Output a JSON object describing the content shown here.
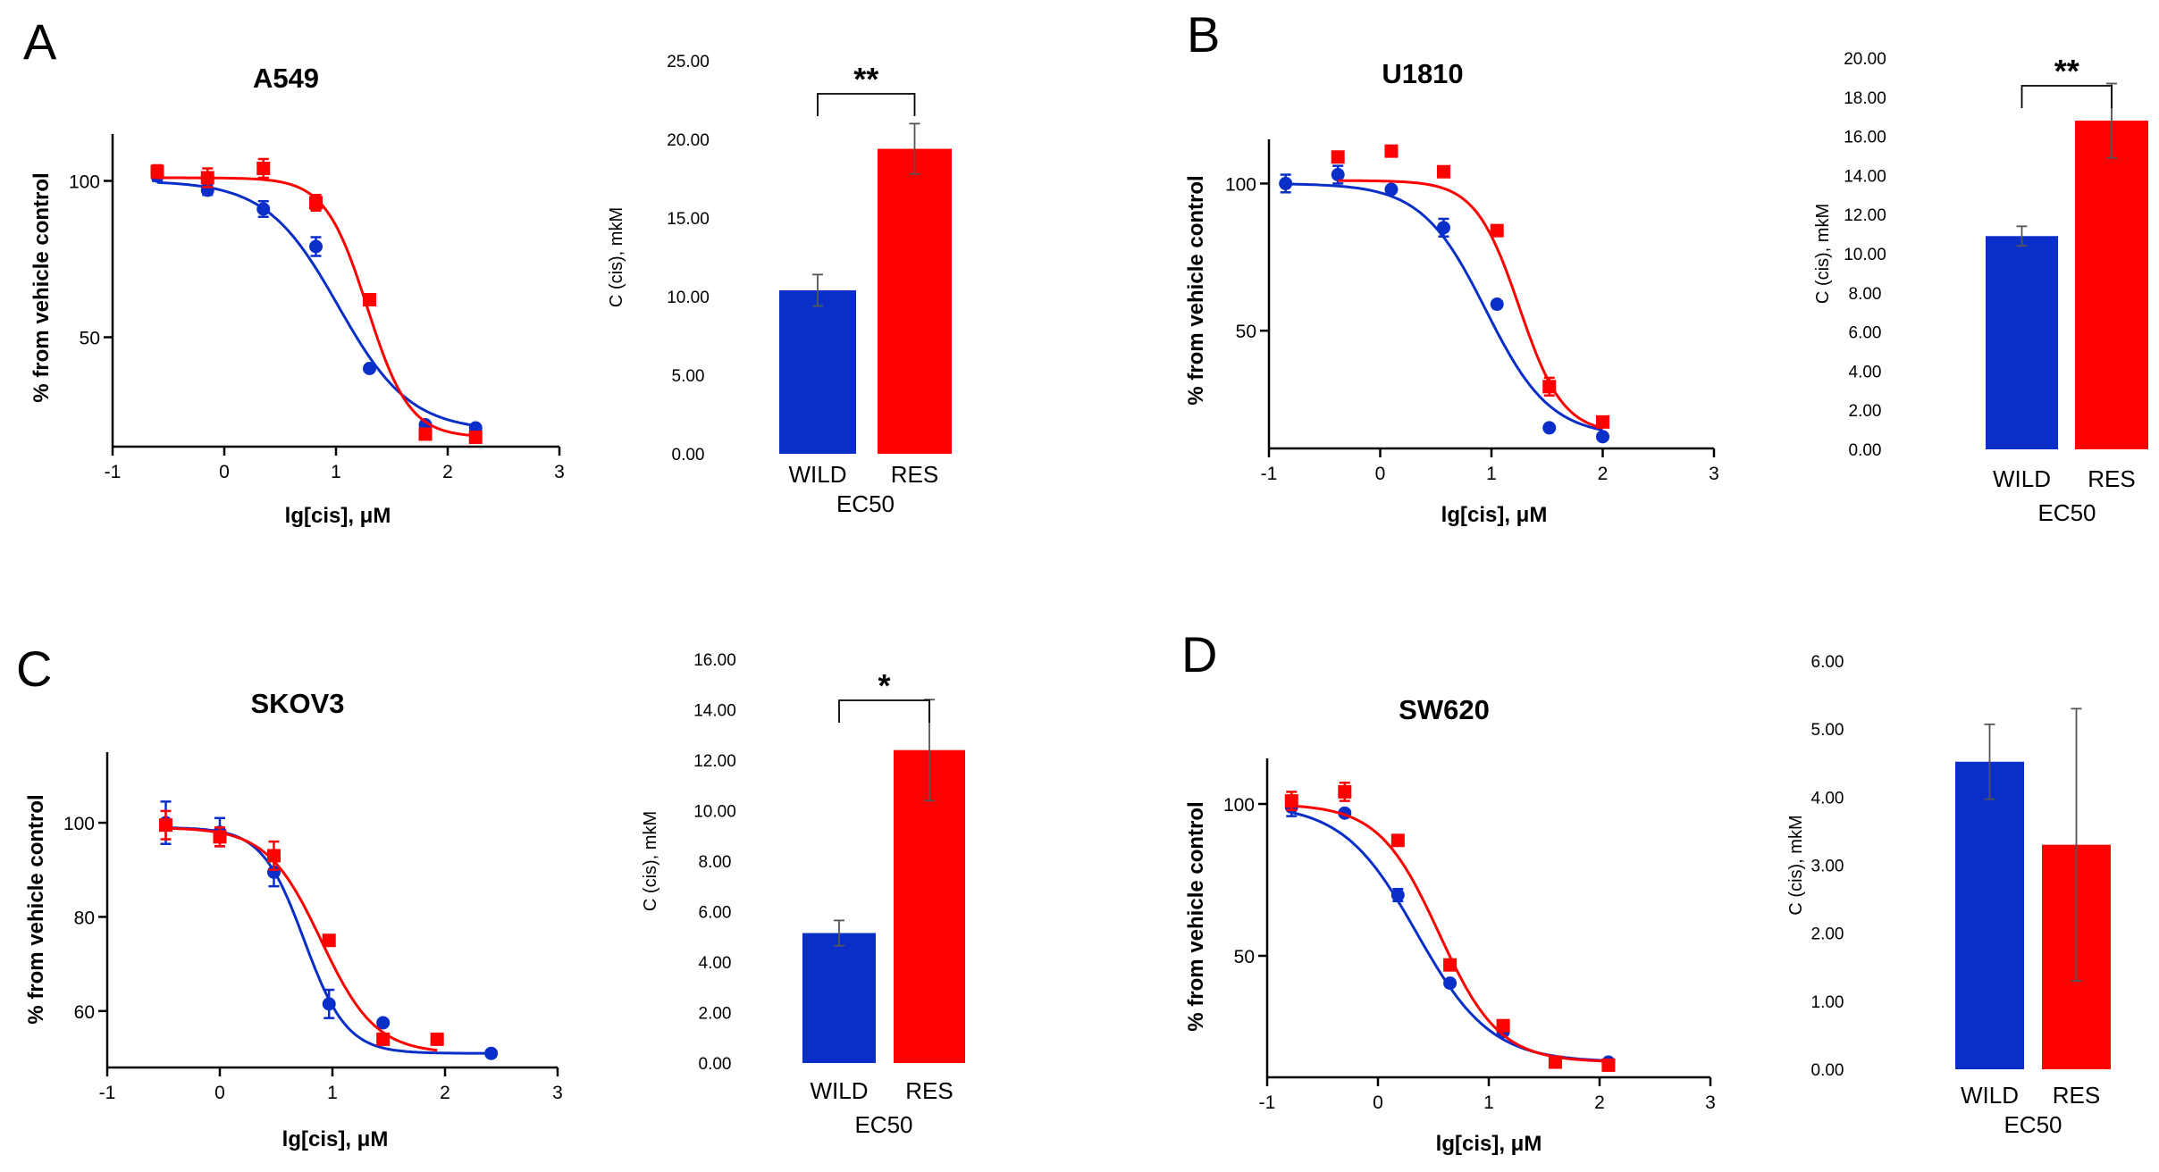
{
  "colors": {
    "wild": "#0a2fc8",
    "res": "#ff0000",
    "axis": "#000000",
    "err": "#555555"
  },
  "panels": [
    {
      "letter": "A",
      "title": "A549",
      "xlabel": "lg[cis], μM",
      "ylabel": "% from vehicle control"
    },
    {
      "letter": "B",
      "title": "U1810",
      "xlabel": "lg[cis], μM",
      "ylabel": "% from vehicle control"
    },
    {
      "letter": "C",
      "title": "SKOV3",
      "xlabel": "lg[cis], μM",
      "ylabel": "% from vehicle control"
    },
    {
      "letter": "D",
      "title": "SW620",
      "xlabel": "lg[cis], μM",
      "ylabel": "% from vehicle control"
    }
  ],
  "chart_data": [
    {
      "type": "scatter",
      "panel": "A",
      "title": "A549",
      "xlabel": "lg[cis], μM",
      "ylabel": "% from vehicle control",
      "xlim": [
        -1,
        3
      ],
      "ylim": [
        15,
        115
      ],
      "xticks": [
        -1,
        0,
        1,
        2,
        3
      ],
      "yticks": [
        50,
        100
      ],
      "series": [
        {
          "x": [
            -0.6,
            -0.15,
            0.35,
            0.82,
            1.3,
            1.8,
            2.25
          ],
          "y": [
            101.5,
            97,
            91,
            79,
            40,
            22,
            21
          ],
          "err": [
            1.5,
            1.5,
            2.5,
            3,
            0,
            0,
            0
          ],
          "fit": {
            "top": 100,
            "bottom": 20,
            "log_ec50": 1.02,
            "hill": 1.35
          },
          "marker": "circle",
          "color_key": "wild"
        },
        {
          "x": [
            -0.6,
            -0.15,
            0.35,
            0.82,
            1.3,
            1.8,
            2.25
          ],
          "y": [
            103,
            101,
            104,
            93,
            62,
            19,
            18
          ],
          "err": [
            2,
            3,
            3,
            2.5,
            0,
            0,
            0
          ],
          "fit": {
            "top": 101,
            "bottom": 18,
            "log_ec50": 1.28,
            "hill": 2.3
          },
          "marker": "square",
          "color_key": "res"
        }
      ]
    },
    {
      "type": "bar",
      "panel": "A",
      "categories": [
        "WILD",
        "RES"
      ],
      "xlabel": "EC50",
      "ylabel": "C (cis), mkM",
      "values": [
        10.4,
        19.4
      ],
      "err": [
        1.0,
        1.6
      ],
      "ylim": [
        0,
        25
      ],
      "yticks": [
        "0.00",
        "5.00",
        "10.00",
        "15.00",
        "20.00",
        "25.00"
      ],
      "significance": "**"
    },
    {
      "type": "scatter",
      "panel": "B",
      "title": "U1810",
      "xlabel": "lg[cis], μM",
      "ylabel": "% from vehicle control",
      "xlim": [
        -1,
        3
      ],
      "ylim": [
        10,
        115
      ],
      "xticks": [
        -1,
        0,
        1,
        2,
        3
      ],
      "yticks": [
        50,
        100
      ],
      "series": [
        {
          "x": [
            -0.85,
            -0.38,
            0.1,
            0.57,
            1.05,
            1.52,
            2.0
          ],
          "y": [
            100,
            103,
            98,
            85,
            59,
            17,
            14
          ],
          "err": [
            3,
            3,
            0,
            3,
            0,
            0,
            0
          ],
          "fit": {
            "top": 100,
            "bottom": 14,
            "log_ec50": 0.95,
            "hill": 1.5
          },
          "marker": "circle",
          "color_key": "wild"
        },
        {
          "x": [
            -0.38,
            0.1,
            0.57,
            1.05,
            1.52,
            2.0
          ],
          "y": [
            109,
            111,
            104,
            84,
            31,
            19
          ],
          "err": [
            0,
            0,
            0,
            0,
            3,
            0
          ],
          "fit": {
            "top": 101,
            "bottom": 15,
            "log_ec50": 1.25,
            "hill": 2.2
          },
          "marker": "square",
          "color_key": "res"
        }
      ]
    },
    {
      "type": "bar",
      "panel": "B",
      "categories": [
        "WILD",
        "RES"
      ],
      "xlabel": "EC50",
      "ylabel": "C (cis), mkM",
      "values": [
        10.9,
        16.8
      ],
      "err": [
        0.5,
        1.9
      ],
      "ylim": [
        0,
        20
      ],
      "yticks": [
        "0.00",
        "2.00",
        "4.00",
        "6.00",
        "8.00",
        "10.00",
        "12.00",
        "14.00",
        "16.00",
        "18.00",
        "20.00"
      ],
      "significance": "**"
    },
    {
      "type": "scatter",
      "panel": "C",
      "title": "SKOV3",
      "xlabel": "lg[cis], μM",
      "ylabel": "% from vehicle control",
      "xlim": [
        -1,
        3
      ],
      "ylim": [
        48,
        115
      ],
      "xticks": [
        -1,
        0,
        1,
        2,
        3
      ],
      "yticks": [
        60,
        80,
        100
      ],
      "series": [
        {
          "x": [
            -0.48,
            0.0,
            0.48,
            0.97,
            1.45,
            1.93,
            2.41
          ],
          "y": [
            100,
            98,
            89.5,
            61.5,
            57.5,
            54,
            51
          ],
          "err": [
            4.5,
            3,
            3,
            3,
            0,
            0,
            0
          ],
          "fit": {
            "top": 99,
            "bottom": 51,
            "log_ec50": 0.75,
            "hill": 2.3
          },
          "marker": "circle",
          "color_key": "wild"
        },
        {
          "x": [
            -0.48,
            0.0,
            0.48,
            0.97,
            1.45,
            1.93
          ],
          "y": [
            99.5,
            97,
            93,
            75,
            54,
            54
          ],
          "err": [
            3,
            2,
            3,
            0,
            0,
            0
          ],
          "fit": {
            "top": 99,
            "bottom": 51,
            "log_ec50": 0.9,
            "hill": 1.8
          },
          "marker": "square",
          "color_key": "res"
        }
      ]
    },
    {
      "type": "bar",
      "panel": "C",
      "categories": [
        "WILD",
        "RES"
      ],
      "xlabel": "EC50",
      "ylabel": "C (cis), mkM",
      "values": [
        5.15,
        12.4
      ],
      "err": [
        0.5,
        2.0
      ],
      "ylim": [
        0,
        16
      ],
      "yticks": [
        "0.00",
        "2.00",
        "4.00",
        "6.00",
        "8.00",
        "10.00",
        "12.00",
        "14.00",
        "16.00"
      ],
      "significance": "*"
    },
    {
      "type": "scatter",
      "panel": "D",
      "title": "SW620",
      "xlabel": "lg[cis], μM",
      "ylabel": "% from vehicle control",
      "xlim": [
        -1,
        3
      ],
      "ylim": [
        10,
        115
      ],
      "xticks": [
        -1,
        0,
        1,
        2,
        3
      ],
      "yticks": [
        50,
        100
      ],
      "series": [
        {
          "x": [
            -0.78,
            -0.3,
            0.18,
            0.65,
            1.13,
            1.6,
            2.08
          ],
          "y": [
            99,
            97,
            70,
            41,
            25,
            15,
            15
          ],
          "err": [
            3,
            0,
            2,
            0,
            0,
            0,
            0
          ],
          "fit": {
            "top": 100,
            "bottom": 15,
            "log_ec50": 0.35,
            "hill": 1.3
          },
          "marker": "circle",
          "color_key": "wild"
        },
        {
          "x": [
            -0.78,
            -0.3,
            0.18,
            0.65,
            1.13,
            1.6,
            2.08
          ],
          "y": [
            101,
            104,
            88,
            47,
            27,
            15,
            14
          ],
          "err": [
            3,
            3,
            0,
            0,
            0,
            0,
            0
          ],
          "fit": {
            "top": 100,
            "bottom": 15,
            "log_ec50": 0.55,
            "hill": 1.6
          },
          "marker": "square",
          "color_key": "res"
        }
      ]
    },
    {
      "type": "bar",
      "panel": "D",
      "categories": [
        "WILD",
        "RES"
      ],
      "xlabel": "EC50",
      "ylabel": "C (cis), mkM",
      "values": [
        4.52,
        3.3
      ],
      "err": [
        0.55,
        2.0
      ],
      "ylim": [
        0,
        6
      ],
      "yticks": [
        "0.00",
        "1.00",
        "2.00",
        "3.00",
        "4.00",
        "5.00",
        "6.00"
      ],
      "significance": ""
    }
  ]
}
